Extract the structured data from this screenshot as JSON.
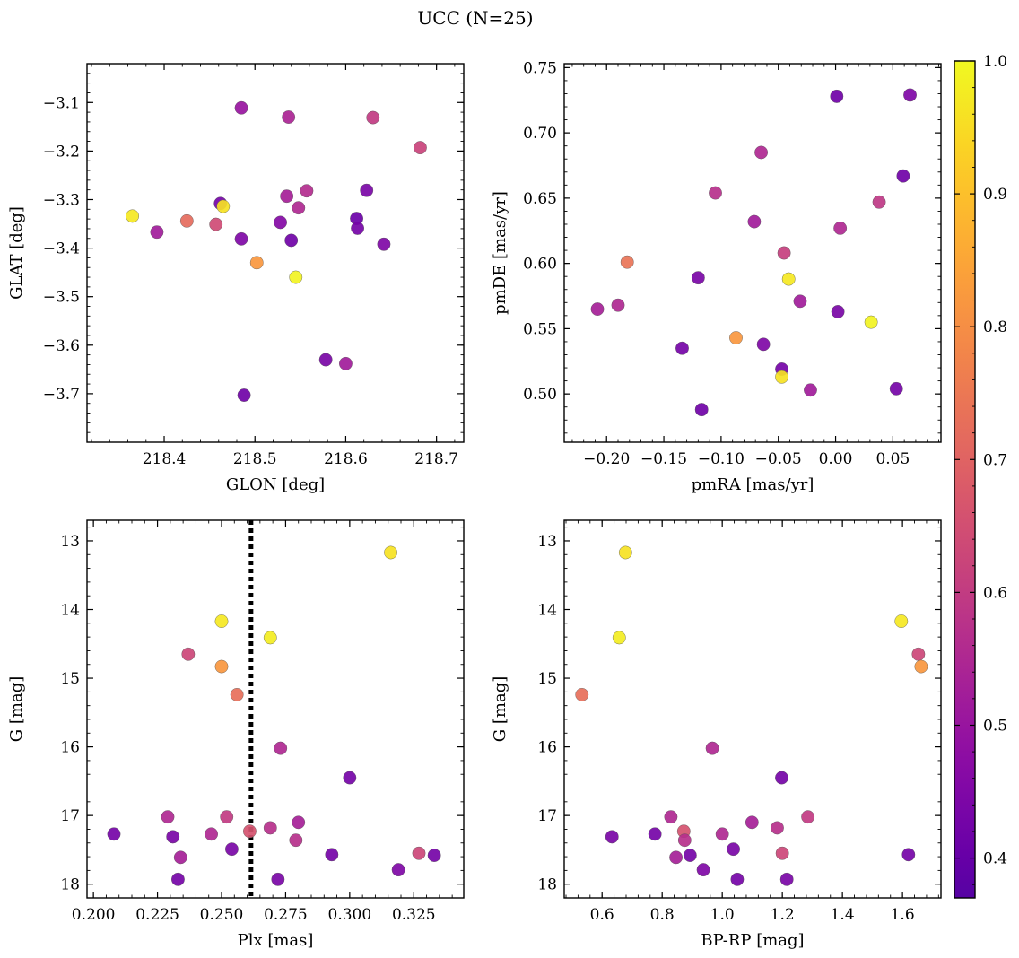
{
  "figure": {
    "suptitle": "UCC (N=25)"
  },
  "chart_data": [
    {
      "type": "scatter",
      "title": "",
      "xlabel": "GLON [deg]",
      "ylabel": "GLAT [deg]",
      "xlim": [
        218.315,
        218.73
      ],
      "ylim": [
        -3.8,
        -3.02
      ],
      "xticks": [
        218.4,
        218.5,
        218.6,
        218.7
      ],
      "xtick_labels": [
        "218.4",
        "218.5",
        "218.6",
        "218.7"
      ],
      "yticks": [
        -3.1,
        -3.2,
        -3.3,
        -3.4,
        -3.5,
        -3.6,
        -3.7
      ],
      "ytick_labels": [
        "−3.1",
        "−3.2",
        "−3.3",
        "−3.4",
        "−3.5",
        "−3.6",
        "−3.7"
      ],
      "points": [
        {
          "x": 218.365,
          "y": -3.334,
          "c": 0.97
        },
        {
          "x": 218.392,
          "y": -3.367,
          "c": 0.52
        },
        {
          "x": 218.425,
          "y": -3.344,
          "c": 0.72
        },
        {
          "x": 218.457,
          "y": -3.351,
          "c": 0.64
        },
        {
          "x": 218.462,
          "y": -3.308,
          "c": 0.43
        },
        {
          "x": 218.465,
          "y": -3.314,
          "c": 0.96
        },
        {
          "x": 218.485,
          "y": -3.111,
          "c": 0.5
        },
        {
          "x": 218.485,
          "y": -3.381,
          "c": 0.45
        },
        {
          "x": 218.488,
          "y": -3.703,
          "c": 0.42
        },
        {
          "x": 218.502,
          "y": -3.43,
          "c": 0.82
        },
        {
          "x": 218.528,
          "y": -3.347,
          "c": 0.46
        },
        {
          "x": 218.535,
          "y": -3.293,
          "c": 0.53
        },
        {
          "x": 218.537,
          "y": -3.13,
          "c": 0.54
        },
        {
          "x": 218.54,
          "y": -3.384,
          "c": 0.42
        },
        {
          "x": 218.545,
          "y": -3.46,
          "c": 0.99
        },
        {
          "x": 218.548,
          "y": -3.317,
          "c": 0.55
        },
        {
          "x": 218.557,
          "y": -3.282,
          "c": 0.56
        },
        {
          "x": 218.578,
          "y": -3.63,
          "c": 0.44
        },
        {
          "x": 218.6,
          "y": -3.638,
          "c": 0.52
        },
        {
          "x": 218.612,
          "y": -3.339,
          "c": 0.41
        },
        {
          "x": 218.613,
          "y": -3.359,
          "c": 0.43
        },
        {
          "x": 218.623,
          "y": -3.281,
          "c": 0.44
        },
        {
          "x": 218.63,
          "y": -3.131,
          "c": 0.6
        },
        {
          "x": 218.642,
          "y": -3.392,
          "c": 0.45
        },
        {
          "x": 218.682,
          "y": -3.193,
          "c": 0.62
        }
      ]
    },
    {
      "type": "scatter",
      "title": "",
      "xlabel": "pmRA [mas/yr]",
      "ylabel": "pmDE [mas/yr]",
      "xlim": [
        -0.237,
        0.092
      ],
      "ylim": [
        0.463,
        0.753
      ],
      "xticks": [
        -0.2,
        -0.15,
        -0.1,
        -0.05,
        0.0,
        0.05
      ],
      "xtick_labels": [
        "−0.20",
        "−0.15",
        "−0.10",
        "−0.05",
        "0.00",
        "0.05"
      ],
      "yticks": [
        0.5,
        0.55,
        0.6,
        0.65,
        0.7,
        0.75
      ],
      "ytick_labels": [
        "0.50",
        "0.55",
        "0.60",
        "0.65",
        "0.70",
        "0.75"
      ],
      "points": [
        {
          "x": -0.208,
          "y": 0.565,
          "c": 0.53
        },
        {
          "x": -0.19,
          "y": 0.568,
          "c": 0.55
        },
        {
          "x": -0.182,
          "y": 0.601,
          "c": 0.74
        },
        {
          "x": -0.134,
          "y": 0.535,
          "c": 0.43
        },
        {
          "x": -0.12,
          "y": 0.589,
          "c": 0.44
        },
        {
          "x": -0.117,
          "y": 0.488,
          "c": 0.42
        },
        {
          "x": -0.105,
          "y": 0.654,
          "c": 0.57
        },
        {
          "x": -0.087,
          "y": 0.543,
          "c": 0.82
        },
        {
          "x": -0.071,
          "y": 0.632,
          "c": 0.52
        },
        {
          "x": -0.065,
          "y": 0.685,
          "c": 0.55
        },
        {
          "x": -0.063,
          "y": 0.538,
          "c": 0.45
        },
        {
          "x": -0.047,
          "y": 0.519,
          "c": 0.43
        },
        {
          "x": -0.047,
          "y": 0.513,
          "c": 0.96
        },
        {
          "x": -0.045,
          "y": 0.608,
          "c": 0.61
        },
        {
          "x": -0.041,
          "y": 0.588,
          "c": 0.97
        },
        {
          "x": -0.031,
          "y": 0.571,
          "c": 0.52
        },
        {
          "x": -0.022,
          "y": 0.503,
          "c": 0.52
        },
        {
          "x": 0.001,
          "y": 0.728,
          "c": 0.42
        },
        {
          "x": 0.002,
          "y": 0.563,
          "c": 0.44
        },
        {
          "x": 0.004,
          "y": 0.627,
          "c": 0.55
        },
        {
          "x": 0.031,
          "y": 0.555,
          "c": 0.99
        },
        {
          "x": 0.038,
          "y": 0.647,
          "c": 0.59
        },
        {
          "x": 0.053,
          "y": 0.504,
          "c": 0.43
        },
        {
          "x": 0.059,
          "y": 0.667,
          "c": 0.42
        },
        {
          "x": 0.065,
          "y": 0.729,
          "c": 0.45
        }
      ]
    },
    {
      "type": "scatter",
      "title": "",
      "xlabel": "Plx [mas]",
      "ylabel": "G [mag]",
      "xlim": [
        0.1975,
        0.3445
      ],
      "ylim": [
        18.2,
        12.7
      ],
      "xticks": [
        0.2,
        0.225,
        0.25,
        0.275,
        0.3,
        0.325
      ],
      "xtick_labels": [
        "0.200",
        "0.225",
        "0.250",
        "0.275",
        "0.300",
        "0.325"
      ],
      "yticks": [
        13,
        14,
        15,
        16,
        17,
        18
      ],
      "ytick_labels": [
        "13",
        "14",
        "15",
        "16",
        "17",
        "18"
      ],
      "vline": {
        "x": 0.2615,
        "style": "dotted"
      },
      "points": [
        {
          "x": 0.208,
          "y": 17.27,
          "c": 0.43
        },
        {
          "x": 0.229,
          "y": 17.02,
          "c": 0.55
        },
        {
          "x": 0.231,
          "y": 17.31,
          "c": 0.44
        },
        {
          "x": 0.233,
          "y": 17.93,
          "c": 0.43
        },
        {
          "x": 0.234,
          "y": 17.61,
          "c": 0.53
        },
        {
          "x": 0.237,
          "y": 14.65,
          "c": 0.63
        },
        {
          "x": 0.246,
          "y": 17.27,
          "c": 0.55
        },
        {
          "x": 0.25,
          "y": 14.17,
          "c": 0.97
        },
        {
          "x": 0.25,
          "y": 14.83,
          "c": 0.82
        },
        {
          "x": 0.252,
          "y": 17.02,
          "c": 0.6
        },
        {
          "x": 0.254,
          "y": 17.49,
          "c": 0.44
        },
        {
          "x": 0.256,
          "y": 15.24,
          "c": 0.73
        },
        {
          "x": 0.261,
          "y": 17.23,
          "c": 0.66
        },
        {
          "x": 0.269,
          "y": 14.41,
          "c": 0.98
        },
        {
          "x": 0.269,
          "y": 17.18,
          "c": 0.57
        },
        {
          "x": 0.272,
          "y": 17.93,
          "c": 0.44
        },
        {
          "x": 0.273,
          "y": 16.02,
          "c": 0.55
        },
        {
          "x": 0.279,
          "y": 17.36,
          "c": 0.57
        },
        {
          "x": 0.28,
          "y": 17.1,
          "c": 0.53
        },
        {
          "x": 0.293,
          "y": 17.57,
          "c": 0.43
        },
        {
          "x": 0.3,
          "y": 16.45,
          "c": 0.43
        },
        {
          "x": 0.316,
          "y": 13.17,
          "c": 0.96
        },
        {
          "x": 0.319,
          "y": 17.79,
          "c": 0.45
        },
        {
          "x": 0.327,
          "y": 17.55,
          "c": 0.63
        },
        {
          "x": 0.333,
          "y": 17.58,
          "c": 0.43
        }
      ]
    },
    {
      "type": "scatter",
      "title": "",
      "xlabel": "BP-RP [mag]",
      "ylabel": "G [mag]",
      "xlim": [
        0.474,
        1.728
      ],
      "ylim": [
        18.2,
        12.7
      ],
      "xticks": [
        0.6,
        0.8,
        1.0,
        1.2,
        1.4,
        1.6
      ],
      "xtick_labels": [
        "0.6",
        "0.8",
        "1.0",
        "1.2",
        "1.4",
        "1.6"
      ],
      "yticks": [
        13,
        14,
        15,
        16,
        17,
        18
      ],
      "ytick_labels": [
        "13",
        "14",
        "15",
        "16",
        "17",
        "18"
      ],
      "points": [
        {
          "x": 0.533,
          "y": 15.24,
          "c": 0.73
        },
        {
          "x": 0.633,
          "y": 17.31,
          "c": 0.44
        },
        {
          "x": 0.657,
          "y": 14.41,
          "c": 0.98
        },
        {
          "x": 0.678,
          "y": 13.17,
          "c": 0.96
        },
        {
          "x": 0.776,
          "y": 17.27,
          "c": 0.43
        },
        {
          "x": 0.829,
          "y": 17.02,
          "c": 0.55
        },
        {
          "x": 0.846,
          "y": 17.61,
          "c": 0.53
        },
        {
          "x": 0.872,
          "y": 17.23,
          "c": 0.66
        },
        {
          "x": 0.875,
          "y": 17.36,
          "c": 0.57
        },
        {
          "x": 0.893,
          "y": 17.58,
          "c": 0.43
        },
        {
          "x": 0.937,
          "y": 17.79,
          "c": 0.45
        },
        {
          "x": 0.967,
          "y": 16.02,
          "c": 0.55
        },
        {
          "x": 1.0,
          "y": 17.27,
          "c": 0.55
        },
        {
          "x": 1.037,
          "y": 17.49,
          "c": 0.44
        },
        {
          "x": 1.05,
          "y": 17.93,
          "c": 0.43
        },
        {
          "x": 1.099,
          "y": 17.1,
          "c": 0.53
        },
        {
          "x": 1.183,
          "y": 17.18,
          "c": 0.57
        },
        {
          "x": 1.198,
          "y": 16.45,
          "c": 0.43
        },
        {
          "x": 1.2,
          "y": 17.55,
          "c": 0.63
        },
        {
          "x": 1.215,
          "y": 17.93,
          "c": 0.44
        },
        {
          "x": 1.285,
          "y": 17.02,
          "c": 0.6
        },
        {
          "x": 1.596,
          "y": 14.17,
          "c": 0.97
        },
        {
          "x": 1.62,
          "y": 17.57,
          "c": 0.43
        },
        {
          "x": 1.653,
          "y": 14.65,
          "c": 0.63
        },
        {
          "x": 1.662,
          "y": 14.83,
          "c": 0.82
        }
      ]
    }
  ],
  "colorbar": {
    "cmap": "plasma",
    "range": [
      0.37,
      1.0
    ],
    "ticks": [
      0.4,
      0.5,
      0.6,
      0.7,
      0.8,
      0.9,
      1.0
    ],
    "tick_labels": [
      "0.4",
      "0.5",
      "0.6",
      "0.7",
      "0.8",
      "0.9",
      "1.0"
    ]
  }
}
